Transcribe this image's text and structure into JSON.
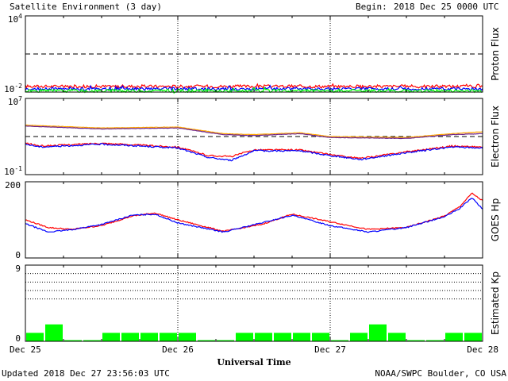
{
  "header": {
    "title": "Satellite Environment (3 day)",
    "begin_label": "Begin:",
    "begin_value": "2018 Dec 25 0000 UTC"
  },
  "footer": {
    "updated": "Updated 2018 Dec 27 23:56:03 UTC",
    "credit": "NOAA/SWPC Boulder, CO USA"
  },
  "colors": {
    "red": "#ff0000",
    "blue": "#0000ff",
    "green": "#00ff00",
    "orange": "#ffa500",
    "purple": "#6a1f8a",
    "black": "#000000"
  },
  "chart_data": {
    "type": "line",
    "xaxis": {
      "label": "Universal Time",
      "range_days": [
        0,
        3
      ],
      "ticks": [
        {
          "day": 0,
          "label": "Dec 25"
        },
        {
          "day": 1,
          "label": "Dec 26"
        },
        {
          "day": 2,
          "label": "Dec 27"
        },
        {
          "day": 3,
          "label": "Dec 28"
        }
      ]
    },
    "panels": [
      {
        "id": "proton",
        "ylabel": "Proton Flux",
        "scale": "log",
        "ylim_log": [
          -2,
          4
        ],
        "tick_labels": [
          {
            "base": "10",
            "exp": "4"
          },
          {
            "base": "10",
            "exp": "-2"
          }
        ],
        "threshold_log": 1,
        "series": [
          {
            "color": "red",
            "mean_log": -1.55,
            "noise": 0.12
          },
          {
            "color": "blue",
            "mean_log": -1.75,
            "noise": 0.12
          },
          {
            "color": "green",
            "mean_log": -1.9,
            "noise": 0.12
          }
        ]
      },
      {
        "id": "electron",
        "ylabel": "Electron Flux",
        "scale": "log",
        "ylim_log": [
          -1,
          7
        ],
        "tick_labels": [
          {
            "base": "10",
            "exp": "7"
          },
          {
            "base": "10",
            "exp": "-1"
          }
        ],
        "threshold_log": 3,
        "series": [
          {
            "color": "orange",
            "x": [
              0,
              0.5,
              1,
              1.3,
              1.5,
              1.8,
              2,
              2.5,
              2.8,
              3
            ],
            "y_log": [
              4.2,
              3.9,
              4.0,
              3.3,
              3.2,
              3.4,
              3.0,
              2.9,
              3.3,
              3.5
            ]
          },
          {
            "color": "purple",
            "x": [
              0,
              0.5,
              1,
              1.3,
              1.5,
              1.8,
              2,
              2.5,
              2.8,
              3
            ],
            "y_log": [
              4.1,
              3.8,
              3.9,
              3.2,
              3.1,
              3.3,
              2.9,
              2.8,
              3.2,
              3.3
            ]
          },
          {
            "color": "red",
            "x": [
              0,
              0.1,
              0.5,
              1,
              1.2,
              1.35,
              1.5,
              1.8,
              2,
              2.2,
              2.5,
              2.8,
              3
            ],
            "y_log": [
              2.3,
              2.0,
              2.3,
              1.9,
              1.0,
              0.9,
              1.6,
              1.6,
              1.1,
              0.7,
              1.4,
              2.0,
              1.9
            ]
          },
          {
            "color": "blue",
            "x": [
              0,
              0.1,
              0.5,
              1,
              1.2,
              1.35,
              1.5,
              1.8,
              2,
              2.2,
              2.5,
              2.8,
              3
            ],
            "y_log": [
              2.2,
              1.9,
              2.2,
              1.8,
              0.8,
              0.5,
              1.5,
              1.5,
              1.0,
              0.6,
              1.3,
              1.9,
              1.8
            ]
          }
        ]
      },
      {
        "id": "hp",
        "ylabel": "GOES Hp",
        "scale": "linear",
        "ylim": [
          0,
          200
        ],
        "tick_labels": [
          "200",
          "0"
        ],
        "series": [
          {
            "color": "red",
            "x": [
              0,
              0.15,
              0.3,
              0.5,
              0.7,
              0.85,
              1.0,
              1.3,
              1.55,
              1.75,
              2.0,
              2.25,
              2.5,
              2.75,
              2.85,
              2.93,
              3.0
            ],
            "y": [
              100,
              80,
              75,
              85,
              110,
              118,
              100,
              70,
              88,
              115,
              95,
              75,
              80,
              110,
              135,
              170,
              150
            ]
          },
          {
            "color": "blue",
            "x": [
              0,
              0.15,
              0.3,
              0.5,
              0.7,
              0.85,
              1.0,
              1.3,
              1.55,
              1.75,
              2.0,
              2.25,
              2.5,
              2.75,
              2.85,
              2.93,
              3.0
            ],
            "y": [
              90,
              68,
              74,
              88,
              112,
              115,
              92,
              68,
              92,
              112,
              85,
              68,
              80,
              108,
              130,
              158,
              128
            ]
          }
        ]
      },
      {
        "id": "kp",
        "ylabel": "Estimated Kp",
        "type": "bar",
        "scale": "linear",
        "ylim": [
          0,
          9
        ],
        "tick_labels": [
          "9",
          "0"
        ],
        "bar_color": "green",
        "bar_hours": 3,
        "values": [
          1,
          2,
          0,
          0,
          1,
          1,
          1,
          1,
          1,
          0,
          0,
          1,
          1,
          1,
          1,
          1,
          0,
          1,
          2,
          1,
          0,
          0,
          1,
          1
        ]
      }
    ]
  }
}
